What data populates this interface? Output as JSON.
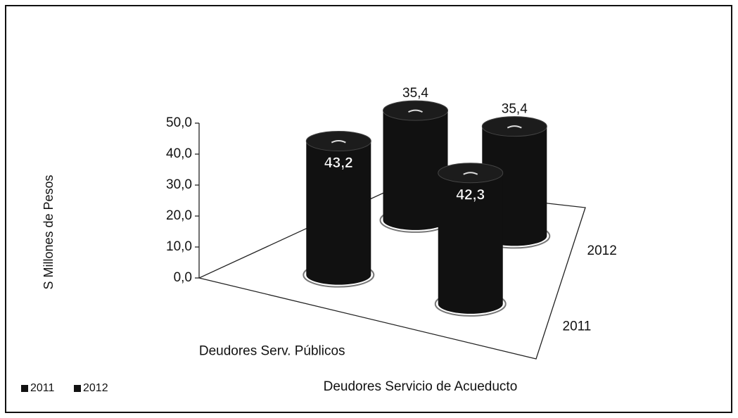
{
  "chart_data": {
    "type": "bar3d",
    "y_label": "S Millones de Pesos",
    "categories": [
      "Deudores Serv. Públicos",
      "Deudores Servicio de Acueducto"
    ],
    "series": [
      {
        "name": "2011",
        "color": "#111111",
        "values": [
          43.2,
          42.3
        ],
        "value_labels": [
          "43,2",
          "42,3"
        ]
      },
      {
        "name": "2012",
        "color": "#111111",
        "values": [
          35.4,
          35.4
        ],
        "value_labels": [
          "35,4",
          "35,4"
        ]
      }
    ],
    "ylim": [
      0,
      50
    ],
    "yticks": [
      {
        "value": 0,
        "label": "0,0"
      },
      {
        "value": 10,
        "label": "10,0"
      },
      {
        "value": 20,
        "label": "20,0"
      },
      {
        "value": 30,
        "label": "30,0"
      },
      {
        "value": 40,
        "label": "40,0"
      },
      {
        "value": 50,
        "label": "50,0"
      }
    ],
    "grid": false,
    "legend": "bottom-left"
  }
}
